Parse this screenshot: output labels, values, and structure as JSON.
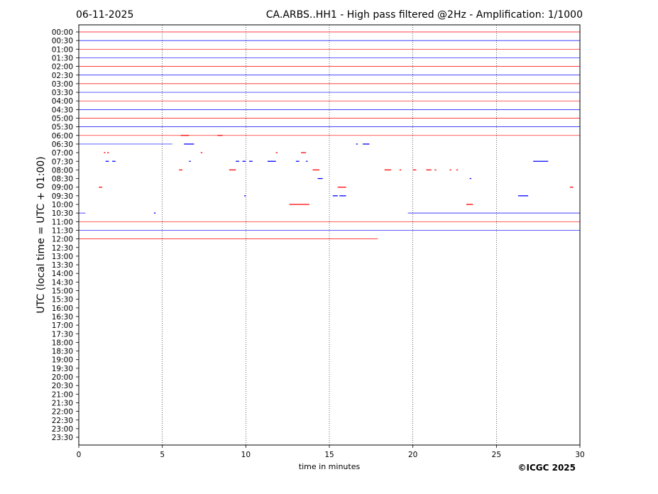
{
  "header": {
    "date": "06-11-2025",
    "title": "CA.ARBS..HH1 - High pass filtered @2Hz - Amplification: 1/1000"
  },
  "footer": {
    "copyright": "©ICGC 2025"
  },
  "chart_data": {
    "type": "line",
    "title": "CA.ARBS..HH1 - High pass filtered @2Hz - Amplification: 1/1000",
    "xlabel": "time in minutes",
    "ylabel": "UTC (local time = UTC + 01:00)",
    "xlim": [
      0,
      30
    ],
    "x_ticks": [
      0,
      5,
      10,
      15,
      20,
      25,
      30
    ],
    "x_grid": "dotted vertical lines at 5, 10, 15, 20, 25",
    "row_labels": [
      "00:00",
      "00:30",
      "01:00",
      "01:30",
      "02:00",
      "02:30",
      "03:00",
      "03:30",
      "04:00",
      "04:30",
      "05:00",
      "05:30",
      "06:00",
      "06:30",
      "07:00",
      "07:30",
      "08:00",
      "08:30",
      "09:00",
      "09:30",
      "10:00",
      "10:30",
      "11:00",
      "11:30",
      "12:00",
      "12:30",
      "13:00",
      "13:30",
      "14:00",
      "14:30",
      "15:00",
      "15:30",
      "16:00",
      "16:30",
      "17:00",
      "17:30",
      "18:00",
      "18:30",
      "19:00",
      "19:30",
      "20:00",
      "20:30",
      "21:00",
      "21:30",
      "22:00",
      "22:30",
      "23:00",
      "23:30"
    ],
    "colors": {
      "even_rows": "#ff0000",
      "odd_rows": "#0000ff"
    },
    "traces": [
      {
        "row": "00:00",
        "from": 0,
        "to": 30
      },
      {
        "row": "00:30",
        "from": 0,
        "to": 30
      },
      {
        "row": "01:00",
        "from": 0,
        "to": 30
      },
      {
        "row": "01:30",
        "from": 0,
        "to": 30
      },
      {
        "row": "02:00",
        "from": 0,
        "to": 30
      },
      {
        "row": "02:30",
        "from": 0,
        "to": 30
      },
      {
        "row": "03:00",
        "from": 0,
        "to": 30
      },
      {
        "row": "03:30",
        "from": 0,
        "to": 30
      },
      {
        "row": "04:00",
        "from": 0,
        "to": 30
      },
      {
        "row": "04:30",
        "from": 0,
        "to": 30
      },
      {
        "row": "05:00",
        "from": 0,
        "to": 30
      },
      {
        "row": "05:30",
        "from": 0,
        "to": 30
      },
      {
        "row": "06:00",
        "from": 0,
        "to": 30
      },
      {
        "row": "06:30",
        "from": 0,
        "to": 5.6
      },
      {
        "row": "10:30",
        "from": 0,
        "to": 0.4
      },
      {
        "row": "10:30",
        "from": 19.7,
        "to": 30
      },
      {
        "row": "11:00",
        "from": 0,
        "to": 30
      },
      {
        "row": "11:30",
        "from": 0,
        "to": 30
      },
      {
        "row": "12:00",
        "from": 0,
        "to": 17.9
      }
    ],
    "events": [
      {
        "row": "06:00",
        "from": 6.1,
        "to": 6.6
      },
      {
        "row": "06:00",
        "from": 8.3,
        "to": 8.6
      },
      {
        "row": "06:30",
        "from": 6.3,
        "to": 6.9
      },
      {
        "row": "06:30",
        "from": 16.6,
        "to": 16.7
      },
      {
        "row": "06:30",
        "from": 17.0,
        "to": 17.4
      },
      {
        "row": "07:00",
        "from": 1.5,
        "to": 1.6
      },
      {
        "row": "07:00",
        "from": 1.7,
        "to": 1.8
      },
      {
        "row": "07:00",
        "from": 7.3,
        "to": 7.4
      },
      {
        "row": "07:00",
        "from": 11.8,
        "to": 11.9
      },
      {
        "row": "07:00",
        "from": 13.3,
        "to": 13.6
      },
      {
        "row": "07:30",
        "from": 1.6,
        "to": 1.8
      },
      {
        "row": "07:30",
        "from": 2.0,
        "to": 2.2
      },
      {
        "row": "07:30",
        "from": 6.6,
        "to": 6.7
      },
      {
        "row": "07:30",
        "from": 9.4,
        "to": 9.6
      },
      {
        "row": "07:30",
        "from": 9.8,
        "to": 10.0
      },
      {
        "row": "07:30",
        "from": 10.2,
        "to": 10.4
      },
      {
        "row": "07:30",
        "from": 11.3,
        "to": 11.8
      },
      {
        "row": "07:30",
        "from": 13.0,
        "to": 13.2
      },
      {
        "row": "07:30",
        "from": 13.6,
        "to": 13.7
      },
      {
        "row": "07:30",
        "from": 27.2,
        "to": 28.1
      },
      {
        "row": "08:00",
        "from": 6.0,
        "to": 6.2
      },
      {
        "row": "08:00",
        "from": 9.0,
        "to": 9.4
      },
      {
        "row": "08:00",
        "from": 14.0,
        "to": 14.4
      },
      {
        "row": "08:00",
        "from": 18.3,
        "to": 18.7
      },
      {
        "row": "08:00",
        "from": 19.2,
        "to": 19.3
      },
      {
        "row": "08:00",
        "from": 20.0,
        "to": 20.2
      },
      {
        "row": "08:00",
        "from": 20.8,
        "to": 21.1
      },
      {
        "row": "08:00",
        "from": 21.3,
        "to": 21.4
      },
      {
        "row": "08:00",
        "from": 22.2,
        "to": 22.3
      },
      {
        "row": "08:00",
        "from": 22.6,
        "to": 22.7
      },
      {
        "row": "08:30",
        "from": 14.3,
        "to": 14.6
      },
      {
        "row": "08:30",
        "from": 23.4,
        "to": 23.5
      },
      {
        "row": "09:00",
        "from": 1.2,
        "to": 1.4
      },
      {
        "row": "09:00",
        "from": 15.5,
        "to": 16.0
      },
      {
        "row": "09:00",
        "from": 29.4,
        "to": 29.6
      },
      {
        "row": "09:30",
        "from": 9.9,
        "to": 10.0
      },
      {
        "row": "09:30",
        "from": 15.2,
        "to": 15.5
      },
      {
        "row": "09:30",
        "from": 15.6,
        "to": 16.0
      },
      {
        "row": "09:30",
        "from": 26.3,
        "to": 26.9
      },
      {
        "row": "10:00",
        "from": 12.6,
        "to": 13.8
      },
      {
        "row": "10:00",
        "from": 23.2,
        "to": 23.6
      },
      {
        "row": "10:30",
        "from": 4.5,
        "to": 4.6
      }
    ]
  }
}
